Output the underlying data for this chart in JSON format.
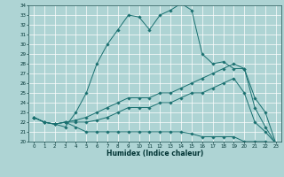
{
  "xlabel": "Humidex (Indice chaleur)",
  "xlim": [
    -0.5,
    23.5
  ],
  "ylim": [
    20,
    34
  ],
  "xticks": [
    0,
    1,
    2,
    3,
    4,
    5,
    6,
    7,
    8,
    9,
    10,
    11,
    12,
    13,
    14,
    15,
    16,
    17,
    18,
    19,
    20,
    21,
    22,
    23
  ],
  "yticks": [
    20,
    21,
    22,
    23,
    24,
    25,
    26,
    27,
    28,
    29,
    30,
    31,
    32,
    33,
    34
  ],
  "line_color": "#1a7070",
  "bg_color": "#aed4d4",
  "grid_color": "#c8e8e8",
  "lines": [
    {
      "x": [
        0,
        1,
        2,
        3,
        4,
        5,
        6,
        7,
        8,
        9,
        10,
        11,
        12,
        13,
        14,
        15,
        16,
        17,
        18,
        19,
        20,
        21,
        22,
        23
      ],
      "y": [
        22.5,
        22.0,
        21.8,
        21.5,
        23.0,
        25.0,
        28.0,
        30.0,
        31.5,
        33.0,
        32.8,
        31.5,
        33.0,
        33.5,
        34.2,
        33.5,
        29.0,
        28.0,
        28.2,
        27.5,
        27.5,
        23.5,
        21.5,
        19.8
      ]
    },
    {
      "x": [
        0,
        1,
        2,
        3,
        4,
        5,
        6,
        7,
        8,
        9,
        10,
        11,
        12,
        13,
        14,
        15,
        16,
        17,
        18,
        19,
        20,
        21,
        22,
        23
      ],
      "y": [
        22.5,
        22.0,
        21.8,
        22.0,
        22.2,
        22.5,
        23.0,
        23.5,
        24.0,
        24.5,
        24.5,
        24.5,
        25.0,
        25.0,
        25.5,
        26.0,
        26.5,
        27.0,
        27.5,
        28.0,
        27.5,
        24.5,
        23.0,
        19.8
      ]
    },
    {
      "x": [
        0,
        1,
        2,
        3,
        4,
        5,
        6,
        7,
        8,
        9,
        10,
        11,
        12,
        13,
        14,
        15,
        16,
        17,
        18,
        19,
        20,
        21,
        22,
        23
      ],
      "y": [
        22.5,
        22.0,
        21.8,
        22.0,
        22.0,
        22.0,
        22.2,
        22.5,
        23.0,
        23.5,
        23.5,
        23.5,
        24.0,
        24.0,
        24.5,
        25.0,
        25.0,
        25.5,
        26.0,
        26.5,
        25.0,
        22.0,
        21.0,
        19.8
      ]
    },
    {
      "x": [
        0,
        1,
        2,
        3,
        4,
        5,
        6,
        7,
        8,
        9,
        10,
        11,
        12,
        13,
        14,
        15,
        16,
        17,
        18,
        19,
        20,
        21,
        22,
        23
      ],
      "y": [
        22.5,
        22.0,
        21.8,
        22.0,
        21.5,
        21.0,
        21.0,
        21.0,
        21.0,
        21.0,
        21.0,
        21.0,
        21.0,
        21.0,
        21.0,
        20.8,
        20.5,
        20.5,
        20.5,
        20.5,
        20.0,
        20.0,
        20.0,
        19.8
      ]
    }
  ]
}
